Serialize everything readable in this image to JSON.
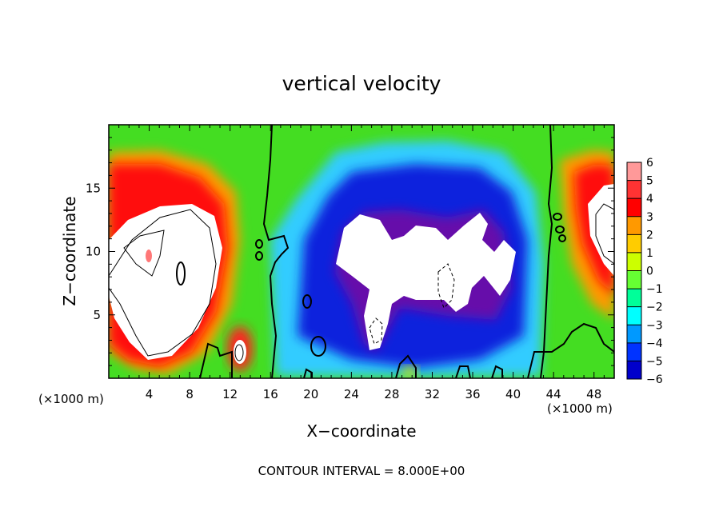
{
  "chart_data": {
    "type": "heatmap",
    "title": "vertical velocity",
    "xlabel": "X−coordinate",
    "ylabel": "Z−coordinate",
    "x_unit": "(×1000 m)",
    "y_unit": "(×1000 m)",
    "x_ticks": [
      4,
      8,
      12,
      16,
      20,
      24,
      28,
      32,
      36,
      40,
      44,
      48
    ],
    "x_tick_labels": [
      "4",
      "8",
      "12",
      "16",
      "20",
      "24",
      "28",
      "32",
      "36",
      "40",
      "44",
      "48"
    ],
    "y_ticks": [
      5,
      10,
      15
    ],
    "y_tick_labels": [
      "5",
      "10",
      "15"
    ],
    "xlim": [
      0,
      50
    ],
    "ylim": [
      0,
      20
    ],
    "colorbar": {
      "levels": [
        6,
        5,
        4,
        3,
        2,
        1,
        0,
        -1,
        -2,
        -3,
        -4,
        -5,
        -6
      ],
      "labels": [
        "6",
        "5",
        "4",
        "3",
        "2",
        "1",
        "0",
        "−1",
        "−2",
        "−3",
        "−4",
        "−5",
        "−6"
      ],
      "colors": [
        "#ff9999",
        "#ff3333",
        "#ff0000",
        "#ff9900",
        "#ffcc00",
        "#ccff00",
        "#66ff33",
        "#00ff99",
        "#00ffff",
        "#0099ff",
        "#0033ff",
        "#0000cc",
        "#660099"
      ]
    },
    "contour_interval_text": "CONTOUR INTERVAL = 8.000E+00",
    "features": [
      {
        "kind": "updraft",
        "x_range": [
          0,
          10.5
        ],
        "z_range": [
          1,
          17
        ]
      },
      {
        "kind": "updraft",
        "x_range": [
          46.5,
          50
        ],
        "z_range": [
          6,
          17.5
        ]
      },
      {
        "kind": "updraft",
        "x_range": [
          12,
          14
        ],
        "z_range": [
          1,
          4
        ]
      },
      {
        "kind": "downdraft",
        "x_range": [
          18,
          42
        ],
        "z_range": [
          2.5,
          17.5
        ]
      }
    ]
  }
}
